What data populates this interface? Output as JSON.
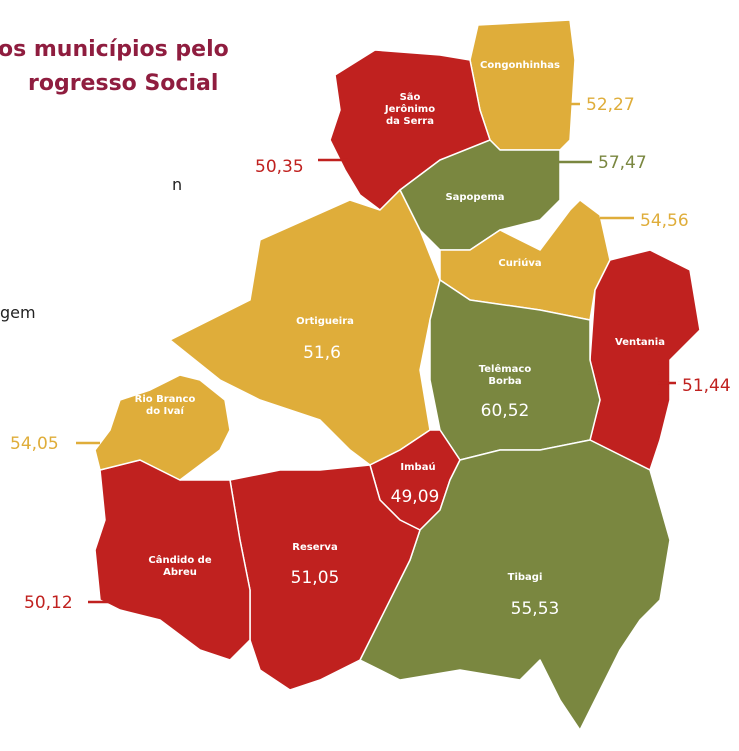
{
  "header": {
    "title_lines": [
      "os municípios pelo",
      "rogresso Social"
    ]
  },
  "side_text": [
    "n",
    "gem"
  ],
  "regions": [
    {
      "name": [
        "Congonhinhas"
      ],
      "value": "52,27",
      "color": "#dfad3a"
    },
    {
      "name": [
        "São",
        "Jerônimo",
        "da Serra"
      ],
      "value": "50,35",
      "color": "#c0211f"
    },
    {
      "name": [
        "Sapopema"
      ],
      "value": "57,47",
      "color": "#7a8740"
    },
    {
      "name": [
        "Curiúva"
      ],
      "value": "54,56",
      "color": "#dfad3a"
    },
    {
      "name": [
        "Ventania"
      ],
      "value": "51,44",
      "color": "#c0211f"
    },
    {
      "name": [
        "Ortigueira"
      ],
      "value": "51,6",
      "color": "#dfad3a"
    },
    {
      "name": [
        "Telêmaco",
        "Borba"
      ],
      "value": "60,52",
      "color": "#7a8740"
    },
    {
      "name": [
        "Imbaú"
      ],
      "value": "49,09",
      "color": "#c0211f"
    },
    {
      "name": [
        "Tibagi"
      ],
      "value": "55,53",
      "color": "#7a8740"
    },
    {
      "name": [
        "Reserva"
      ],
      "value": "51,05",
      "color": "#c0211f"
    },
    {
      "name": [
        "Cândido de",
        "Abreu"
      ],
      "value": "50,12",
      "color": "#c0211f"
    },
    {
      "name": [
        "Rio Branco",
        "do Ivaí"
      ],
      "value": "54,05",
      "color": "#dfad3a"
    }
  ]
}
